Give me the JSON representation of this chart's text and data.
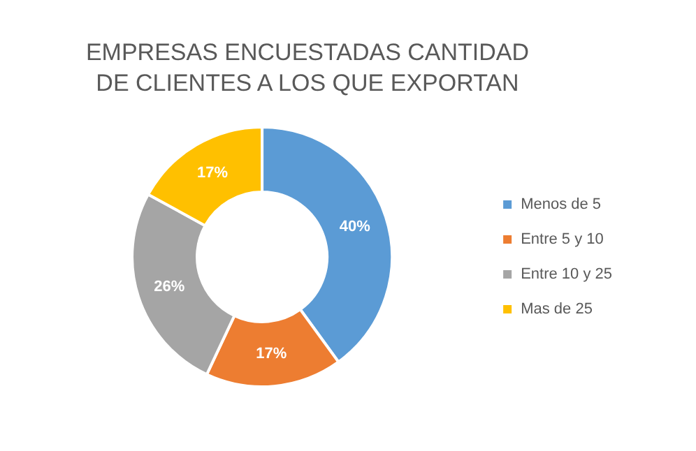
{
  "chart_data": {
    "type": "donut",
    "title": "EMPRESAS ENCUESTADAS CANTIDAD DE CLIENTES A LOS QUE EXPORTAN",
    "categories": [
      "Menos de 5",
      "Entre 5 y 10",
      "Entre 10 y 25",
      "Mas de 25"
    ],
    "values": [
      40,
      17,
      26,
      17
    ],
    "colors": [
      "#5b9bd5",
      "#ed7d31",
      "#a5a5a5",
      "#ffc000"
    ],
    "value_labels": [
      "40%",
      "17%",
      "26%",
      "17%"
    ],
    "legend": "right"
  }
}
